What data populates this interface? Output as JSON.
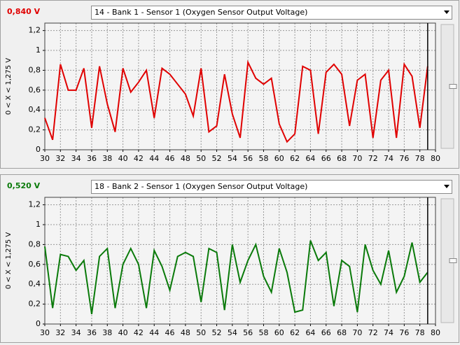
{
  "chart_data": [
    {
      "type": "line",
      "readout": "0,840 V",
      "selector": "14 - Bank 1 - Sensor 1 (Oxygen Sensor Output Voltage)",
      "y_label": "0  < X <  1,275  V",
      "x": [
        30,
        31,
        32,
        33,
        34,
        35,
        36,
        37,
        38,
        39,
        40,
        41,
        42,
        43,
        44,
        45,
        46,
        47,
        48,
        49,
        50,
        51,
        52,
        53,
        54,
        55,
        56,
        57,
        58,
        59,
        60,
        61,
        62,
        63,
        64,
        65,
        66,
        67,
        68,
        69,
        70,
        71,
        72,
        73,
        74,
        75,
        76,
        77,
        78,
        79
      ],
      "series": [
        {
          "color": "#e00000",
          "values": [
            0.32,
            0.1,
            0.86,
            0.6,
            0.6,
            0.82,
            0.22,
            0.84,
            0.46,
            0.18,
            0.82,
            0.58,
            0.68,
            0.8,
            0.32,
            0.82,
            0.76,
            0.66,
            0.56,
            0.34,
            0.82,
            0.18,
            0.24,
            0.76,
            0.36,
            0.12,
            0.88,
            0.72,
            0.66,
            0.72,
            0.26,
            0.08,
            0.16,
            0.84,
            0.8,
            0.16,
            0.78,
            0.86,
            0.76,
            0.24,
            0.7,
            0.76,
            0.12,
            0.7,
            0.8,
            0.12,
            0.86,
            0.74,
            0.22,
            0.84
          ]
        }
      ],
      "xlim": [
        30,
        80
      ],
      "ylim": [
        0,
        1.275
      ],
      "xticks": [
        30,
        32,
        34,
        36,
        38,
        40,
        42,
        44,
        46,
        48,
        50,
        52,
        54,
        56,
        58,
        60,
        62,
        64,
        66,
        68,
        70,
        72,
        74,
        76,
        78,
        80
      ],
      "yticks": [
        0,
        {
          "value": 0.2,
          "label": "0,2"
        },
        {
          "value": 0.4,
          "label": "0,4"
        },
        {
          "value": 0.6,
          "label": "0,6"
        },
        {
          "value": 0.8,
          "label": "0,8"
        },
        1,
        {
          "value": 1.2,
          "label": "1,2"
        }
      ],
      "grid": true,
      "cursor": 79
    },
    {
      "type": "line",
      "readout": "0,520 V",
      "selector": "18 - Bank 2 - Sensor 1 (Oxygen Sensor Output Voltage)",
      "y_label": "0  < X <  1,275  V",
      "x": [
        30,
        31,
        32,
        33,
        34,
        35,
        36,
        37,
        38,
        39,
        40,
        41,
        42,
        43,
        44,
        45,
        46,
        47,
        48,
        49,
        50,
        51,
        52,
        53,
        54,
        55,
        56,
        57,
        58,
        59,
        60,
        61,
        62,
        63,
        64,
        65,
        66,
        67,
        68,
        69,
        70,
        71,
        72,
        73,
        74,
        75,
        76,
        77,
        78,
        79
      ],
      "series": [
        {
          "color": "#0a7a0a",
          "values": [
            0.78,
            0.16,
            0.7,
            0.68,
            0.54,
            0.64,
            0.1,
            0.68,
            0.76,
            0.16,
            0.6,
            0.76,
            0.6,
            0.16,
            0.74,
            0.58,
            0.34,
            0.68,
            0.72,
            0.68,
            0.22,
            0.76,
            0.72,
            0.14,
            0.8,
            0.42,
            0.64,
            0.8,
            0.48,
            0.32,
            0.76,
            0.52,
            0.12,
            0.14,
            0.84,
            0.64,
            0.72,
            0.18,
            0.64,
            0.58,
            0.12,
            0.8,
            0.54,
            0.4,
            0.74,
            0.32,
            0.48,
            0.82,
            0.42,
            0.52
          ]
        }
      ],
      "xlim": [
        30,
        80
      ],
      "ylim": [
        0,
        1.275
      ],
      "xticks": [
        30,
        32,
        34,
        36,
        38,
        40,
        42,
        44,
        46,
        48,
        50,
        52,
        54,
        56,
        58,
        60,
        62,
        64,
        66,
        68,
        70,
        72,
        74,
        76,
        78,
        80
      ],
      "yticks": [
        0,
        {
          "value": 0.2,
          "label": "0,2"
        },
        {
          "value": 0.4,
          "label": "0,4"
        },
        {
          "value": 0.6,
          "label": "0,6"
        },
        {
          "value": 0.8,
          "label": "0,8"
        },
        1,
        {
          "value": 1.2,
          "label": "1,2"
        }
      ],
      "grid": true,
      "cursor": 79
    }
  ]
}
